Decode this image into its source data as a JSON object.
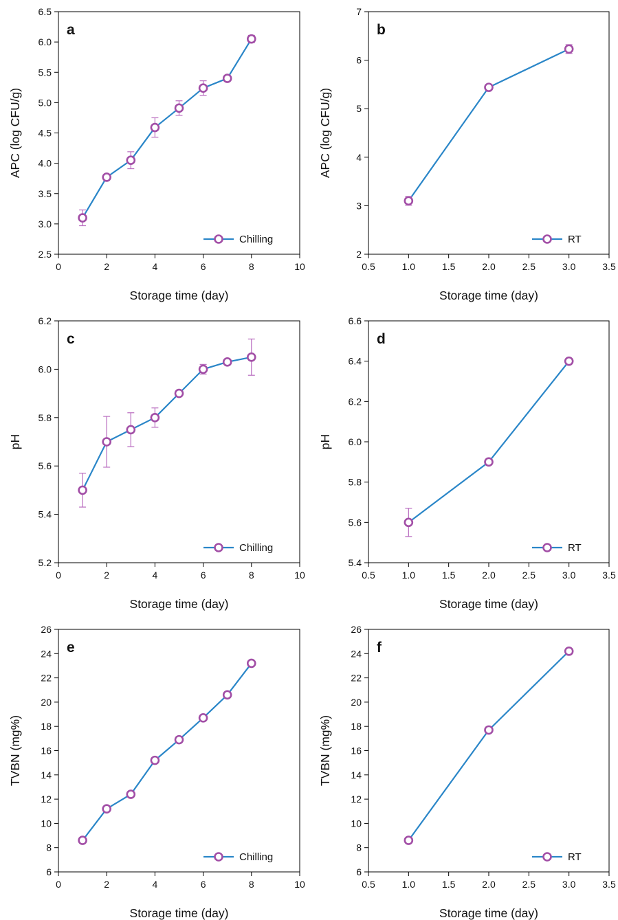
{
  "colors": {
    "line": "#2a86c8",
    "marker": "#a24ea6",
    "error_bar": "#b86bbf",
    "axis": "#000000"
  },
  "chart_data": [
    {
      "id": "a",
      "type": "line",
      "panel_label": "a",
      "xlabel": "Storage time (day)",
      "ylabel": "APC (log CFU/g)",
      "xlim": [
        0,
        10
      ],
      "ylim": [
        2.5,
        6.5
      ],
      "xticks": [
        0,
        2,
        4,
        6,
        8,
        10
      ],
      "xtick_labels": [
        "0",
        "2",
        "4",
        "6",
        "8",
        "10"
      ],
      "yticks": [
        2.5,
        3.0,
        3.5,
        4.0,
        4.5,
        5.0,
        5.5,
        6.0,
        6.5
      ],
      "ytick_labels": [
        "2.5",
        "3.0",
        "3.5",
        "4.0",
        "4.5",
        "5.0",
        "5.5",
        "6.0",
        "6.5"
      ],
      "legend": "bottom-right",
      "series": [
        {
          "name": "Chilling",
          "x": [
            1,
            2,
            3,
            4,
            5,
            6,
            7,
            8
          ],
          "y": [
            3.1,
            3.77,
            4.05,
            4.59,
            4.91,
            5.24,
            5.4,
            6.05
          ],
          "err": [
            0.13,
            0.03,
            0.14,
            0.16,
            0.12,
            0.12,
            0.03,
            0.06
          ]
        }
      ]
    },
    {
      "id": "b",
      "type": "line",
      "panel_label": "b",
      "xlabel": "Storage time (day)",
      "ylabel": "APC (log CFU/g)",
      "xlim": [
        0.5,
        3.5
      ],
      "ylim": [
        2,
        7
      ],
      "xticks": [
        0.5,
        1.0,
        1.5,
        2.0,
        2.5,
        3.0,
        3.5
      ],
      "xtick_labels": [
        "0.5",
        "1.0",
        "1.5",
        "2.0",
        "2.5",
        "3.0",
        "3.5"
      ],
      "yticks": [
        2,
        3,
        4,
        5,
        6,
        7
      ],
      "ytick_labels": [
        "2",
        "3",
        "4",
        "5",
        "6",
        "7"
      ],
      "legend": "bottom-right",
      "series": [
        {
          "name": "RT",
          "x": [
            1,
            2,
            3
          ],
          "y": [
            3.1,
            5.44,
            6.23
          ],
          "err": [
            0.09,
            0.03,
            0.09
          ]
        }
      ]
    },
    {
      "id": "c",
      "type": "line",
      "panel_label": "c",
      "xlabel": "Storage time (day)",
      "ylabel": "pH",
      "xlim": [
        0,
        10
      ],
      "ylim": [
        5.2,
        6.2
      ],
      "xticks": [
        0,
        2,
        4,
        6,
        8,
        10
      ],
      "xtick_labels": [
        "0",
        "2",
        "4",
        "6",
        "8",
        "10"
      ],
      "yticks": [
        5.2,
        5.4,
        5.6,
        5.8,
        6.0,
        6.2
      ],
      "ytick_labels": [
        "5.2",
        "5.4",
        "5.6",
        "5.8",
        "6.0",
        "6.2"
      ],
      "legend": "bottom-right",
      "series": [
        {
          "name": "Chilling",
          "x": [
            1,
            2,
            3,
            4,
            5,
            6,
            7,
            8
          ],
          "y": [
            5.5,
            5.7,
            5.75,
            5.8,
            5.9,
            6.0,
            6.03,
            6.05
          ],
          "err": [
            0.07,
            0.105,
            0.07,
            0.04,
            0.0,
            0.02,
            0.0,
            0.075
          ]
        }
      ]
    },
    {
      "id": "d",
      "type": "line",
      "panel_label": "d",
      "xlabel": "Storage time (day)",
      "ylabel": "pH",
      "xlim": [
        0.5,
        3.5
      ],
      "ylim": [
        5.4,
        6.6
      ],
      "xticks": [
        0.5,
        1.0,
        1.5,
        2.0,
        2.5,
        3.0,
        3.5
      ],
      "xtick_labels": [
        "0.5",
        "1.0",
        "1.5",
        "2.0",
        "2.5",
        "3.0",
        "3.5"
      ],
      "yticks": [
        5.4,
        5.6,
        5.8,
        6.0,
        6.2,
        6.4,
        6.6
      ],
      "ytick_labels": [
        "5.4",
        "5.6",
        "5.8",
        "6.0",
        "6.2",
        "6.4",
        "6.6"
      ],
      "legend": "bottom-right",
      "series": [
        {
          "name": "RT",
          "x": [
            1,
            2,
            3
          ],
          "y": [
            5.6,
            5.9,
            6.4
          ],
          "err": [
            0.07,
            0.0,
            0.0
          ]
        }
      ]
    },
    {
      "id": "e",
      "type": "line",
      "panel_label": "e",
      "xlabel": "Storage time (day)",
      "ylabel": "TVBN (mg%)",
      "xlim": [
        0,
        10
      ],
      "ylim": [
        6,
        26
      ],
      "xticks": [
        0,
        2,
        4,
        6,
        8,
        10
      ],
      "xtick_labels": [
        "0",
        "2",
        "4",
        "6",
        "8",
        "10"
      ],
      "yticks": [
        6,
        8,
        10,
        12,
        14,
        16,
        18,
        20,
        22,
        24,
        26
      ],
      "ytick_labels": [
        "6",
        "8",
        "10",
        "12",
        "14",
        "16",
        "18",
        "20",
        "22",
        "24",
        "26"
      ],
      "legend": "bottom-right",
      "series": [
        {
          "name": "Chilling",
          "x": [
            1,
            2,
            3,
            4,
            5,
            6,
            7,
            8
          ],
          "y": [
            8.6,
            11.2,
            12.4,
            15.2,
            16.9,
            18.7,
            20.6,
            23.2
          ],
          "err": [
            0,
            0,
            0,
            0,
            0,
            0,
            0,
            0
          ]
        }
      ]
    },
    {
      "id": "f",
      "type": "line",
      "panel_label": "f",
      "xlabel": "Storage time (day)",
      "ylabel": "TVBN (mg%)",
      "xlim": [
        0.5,
        3.5
      ],
      "ylim": [
        6,
        26
      ],
      "xticks": [
        0.5,
        1.0,
        1.5,
        2.0,
        2.5,
        3.0,
        3.5
      ],
      "xtick_labels": [
        "0.5",
        "1.0",
        "1.5",
        "2.0",
        "2.5",
        "3.0",
        "3.5"
      ],
      "yticks": [
        6,
        8,
        10,
        12,
        14,
        16,
        18,
        20,
        22,
        24,
        26
      ],
      "ytick_labels": [
        "6",
        "8",
        "10",
        "12",
        "14",
        "16",
        "18",
        "20",
        "22",
        "24",
        "26"
      ],
      "legend": "bottom-right",
      "series": [
        {
          "name": "RT",
          "x": [
            1,
            2,
            3
          ],
          "y": [
            8.6,
            17.7,
            24.2
          ],
          "err": [
            0,
            0,
            0
          ]
        }
      ]
    }
  ]
}
